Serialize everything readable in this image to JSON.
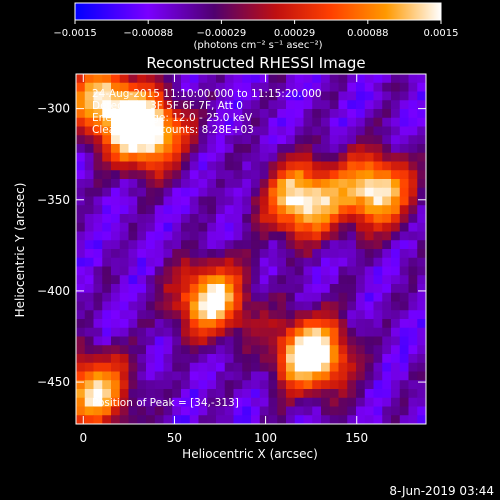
{
  "chart_data": {
    "type": "heatmap",
    "title": "Reconstructed RHESSI Image",
    "xlabel": "Heliocentric X (arcsec)",
    "ylabel": "Heliocentric Y (arcsec)",
    "xlim": [
      -4,
      188
    ],
    "ylim": [
      -473,
      -281
    ],
    "xticks": [
      {
        "v": 0,
        "label": "0"
      },
      {
        "v": 50,
        "label": "50"
      },
      {
        "v": 100,
        "label": "100"
      },
      {
        "v": 150,
        "label": "150"
      }
    ],
    "yticks": [
      {
        "v": -300,
        "label": "−300"
      },
      {
        "v": -350,
        "label": "−350"
      },
      {
        "v": -400,
        "label": "−400"
      },
      {
        "v": -450,
        "label": "−450"
      }
    ],
    "colorbar": {
      "range": [
        -0.0015,
        0.0015
      ],
      "tick_labels": [
        "−0.0015",
        "−0.00088",
        "−0.00029",
        "0.00029",
        "0.00088",
        "0.0015"
      ],
      "units_label": "(photons cm⁻² s⁻¹ asec⁻²)",
      "colormap_stops": [
        "#0000ff",
        "#7a00ff",
        "#500070",
        "#c01010",
        "#ff4000",
        "#ff9900",
        "#ffffff"
      ]
    },
    "annotations": {
      "time_range": "24-Aug-2015 11:10:00.000 to 11:15:20.000",
      "detectors": "Detectors: 3F 5F 6F 7F, Att 0",
      "energy_range": "Energy Range: 12.0 - 25.0 keV",
      "clean_counts": "Clean   Total counts: 8.28E+03",
      "peak": "Position of Peak = [34,-313]"
    },
    "hot_regions": [
      {
        "x": 34,
        "y": -313,
        "peak": 1.0
      },
      {
        "x": 10,
        "y": -295,
        "peak": 0.7
      },
      {
        "x": 120,
        "y": -350,
        "peak": 0.85
      },
      {
        "x": 160,
        "y": -345,
        "peak": 0.8
      },
      {
        "x": 70,
        "y": -405,
        "peak": 0.8
      },
      {
        "x": 125,
        "y": -435,
        "peak": 0.95
      },
      {
        "x": 5,
        "y": -455,
        "peak": 0.75
      }
    ],
    "date_stamp": "8-Jun-2019 03:44"
  }
}
